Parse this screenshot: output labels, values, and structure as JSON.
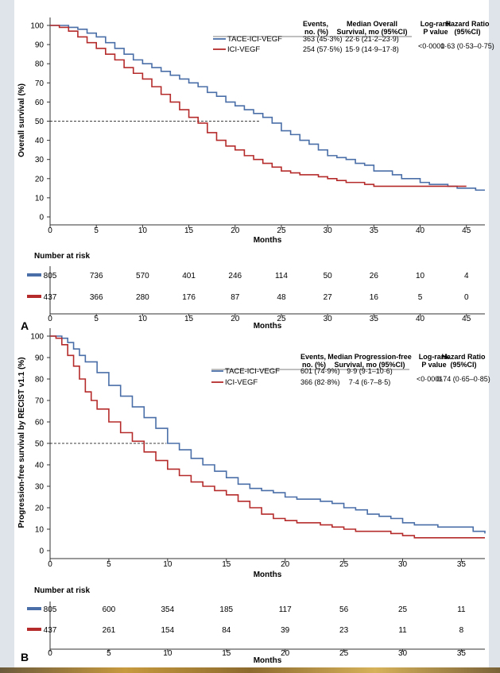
{
  "colors": {
    "tace": "#4a6fa8",
    "ici": "#b52b2b",
    "axis": "#333333",
    "median_line": "#000000"
  },
  "chart_data": [
    {
      "type": "line",
      "panel_label": "A",
      "ylabel": "Overall survival (%)",
      "xlabel": "Months",
      "xlim": [
        0,
        47
      ],
      "ylim": [
        0,
        100
      ],
      "x_ticks": [
        0,
        5,
        10,
        15,
        20,
        25,
        30,
        35,
        40,
        45
      ],
      "y_ticks": [
        0,
        10,
        20,
        30,
        40,
        50,
        60,
        70,
        80,
        90,
        100
      ],
      "median_reference": 50,
      "table_headers": {
        "events": [
          "Events,",
          "no. (%)"
        ],
        "median": [
          "Median Overall",
          "Survival, mo (95%CI)"
        ],
        "logrank": [
          "Log-rank",
          "P value"
        ],
        "hr": [
          "Hazard Ratio",
          "(95%CI)"
        ]
      },
      "series": [
        {
          "name": "TACE-ICI-VEGF",
          "color_key": "tace",
          "events": "363 (45·3%)",
          "median": "22·6 (21·2–23·9)",
          "x": [
            0,
            1,
            2,
            3,
            4,
            5,
            6,
            7,
            8,
            9,
            10,
            11,
            12,
            13,
            14,
            15,
            16,
            17,
            18,
            19,
            20,
            21,
            22,
            23,
            24,
            25,
            26,
            27,
            28,
            29,
            30,
            31,
            32,
            33,
            34,
            35,
            36,
            37,
            38,
            39,
            40,
            41,
            42,
            43,
            44,
            45,
            46,
            47
          ],
          "values": [
            100,
            100,
            99,
            98,
            96,
            94,
            91,
            88,
            85,
            82,
            80,
            78,
            76,
            74,
            72,
            70,
            68,
            65,
            63,
            60,
            58,
            56,
            54,
            52,
            49,
            45,
            43,
            40,
            38,
            35,
            32,
            31,
            30,
            28,
            27,
            24,
            24,
            22,
            20,
            20,
            18,
            17,
            17,
            16,
            15,
            15,
            14,
            14
          ]
        },
        {
          "name": "ICI-VEGF",
          "color_key": "ici",
          "events": "254 (57·5%)",
          "median": "15·9 (14·9–17·8)",
          "x": [
            0,
            1,
            2,
            3,
            4,
            5,
            6,
            7,
            8,
            9,
            10,
            11,
            12,
            13,
            14,
            15,
            16,
            17,
            18,
            19,
            20,
            21,
            22,
            23,
            24,
            25,
            26,
            27,
            28,
            29,
            30,
            31,
            32,
            33,
            34,
            35,
            36,
            37,
            38,
            39,
            40,
            41,
            42,
            43,
            44,
            45
          ],
          "values": [
            100,
            99,
            97,
            94,
            91,
            88,
            85,
            82,
            78,
            75,
            72,
            68,
            64,
            60,
            56,
            52,
            49,
            44,
            40,
            37,
            35,
            32,
            30,
            28,
            26,
            24,
            23,
            22,
            22,
            21,
            20,
            19,
            18,
            18,
            17,
            16,
            16,
            16,
            16,
            16,
            16,
            16,
            16,
            16,
            16,
            16
          ]
        }
      ],
      "log_rank": "<0·0001",
      "hazard_ratio": "0·63 (0·53–0·75)",
      "risk_table": {
        "title": "Number at risk",
        "rows": [
          {
            "color_key": "tace",
            "values": [
              805,
              736,
              570,
              401,
              246,
              114,
              50,
              26,
              10,
              4
            ]
          },
          {
            "color_key": "ici",
            "values": [
              437,
              366,
              280,
              176,
              87,
              48,
              27,
              16,
              5,
              0
            ]
          }
        ]
      }
    },
    {
      "type": "line",
      "panel_label": "B",
      "ylabel": "Progression-free survival by RECIST v1.1 (%)",
      "xlabel": "Months",
      "xlim": [
        0,
        37
      ],
      "ylim": [
        0,
        100
      ],
      "x_ticks": [
        0,
        5,
        10,
        15,
        20,
        25,
        30,
        35
      ],
      "y_ticks": [
        0,
        10,
        20,
        30,
        40,
        50,
        60,
        70,
        80,
        90,
        100
      ],
      "median_reference": 50,
      "table_headers": {
        "events": [
          "Events,",
          "no. (%)"
        ],
        "median": [
          "Median Progression-free",
          "Survival, mo (95%CI)"
        ],
        "logrank": [
          "Log-rank",
          "P value"
        ],
        "hr": [
          "Hazard Ratio",
          "(95%CI)"
        ]
      },
      "series": [
        {
          "name": "TACE-ICI-VEGF",
          "color_key": "tace",
          "events": "601 (74·9%)",
          "median": "9·9 (9·1–10·6)",
          "x": [
            0,
            0.5,
            1,
            1.5,
            2,
            2.5,
            3,
            4,
            5,
            6,
            7,
            8,
            9,
            10,
            11,
            12,
            13,
            14,
            15,
            16,
            17,
            18,
            19,
            20,
            21,
            22,
            23,
            24,
            25,
            26,
            27,
            28,
            29,
            30,
            31,
            32,
            33,
            34,
            35,
            36,
            37
          ],
          "values": [
            100,
            100,
            99,
            97,
            94,
            91,
            88,
            83,
            77,
            72,
            67,
            62,
            57,
            50,
            47,
            43,
            40,
            37,
            34,
            31,
            29,
            28,
            27,
            25,
            24,
            24,
            23,
            22,
            20,
            19,
            17,
            16,
            15,
            13,
            12,
            12,
            11,
            11,
            11,
            9,
            8
          ]
        },
        {
          "name": "ICI-VEGF",
          "color_key": "ici",
          "events": "366 (82·8%)",
          "median": "7·4 (6·7–8·5)",
          "x": [
            0,
            0.5,
            1,
            1.5,
            2,
            2.5,
            3,
            3.5,
            4,
            5,
            6,
            7,
            8,
            9,
            10,
            11,
            12,
            13,
            14,
            15,
            16,
            17,
            18,
            19,
            20,
            21,
            22,
            23,
            24,
            25,
            26,
            27,
            28,
            29,
            30,
            31,
            32,
            33,
            34,
            35,
            36,
            37
          ],
          "values": [
            100,
            99,
            96,
            91,
            86,
            80,
            74,
            70,
            66,
            60,
            55,
            51,
            46,
            42,
            38,
            35,
            32,
            30,
            28,
            26,
            23,
            20,
            17,
            15,
            14,
            13,
            13,
            12,
            11,
            10,
            9,
            9,
            9,
            8,
            7,
            6,
            6,
            6,
            6,
            6,
            6,
            6
          ]
        }
      ],
      "log_rank": "<0·0001",
      "hazard_ratio": "0·74 (0·65–0·85)",
      "risk_table": {
        "title": "Number at risk",
        "rows": [
          {
            "color_key": "tace",
            "values": [
              805,
              600,
              354,
              185,
              117,
              56,
              25,
              11
            ]
          },
          {
            "color_key": "ici",
            "values": [
              437,
              261,
              154,
              84,
              39,
              23,
              11,
              8
            ]
          }
        ]
      }
    }
  ]
}
